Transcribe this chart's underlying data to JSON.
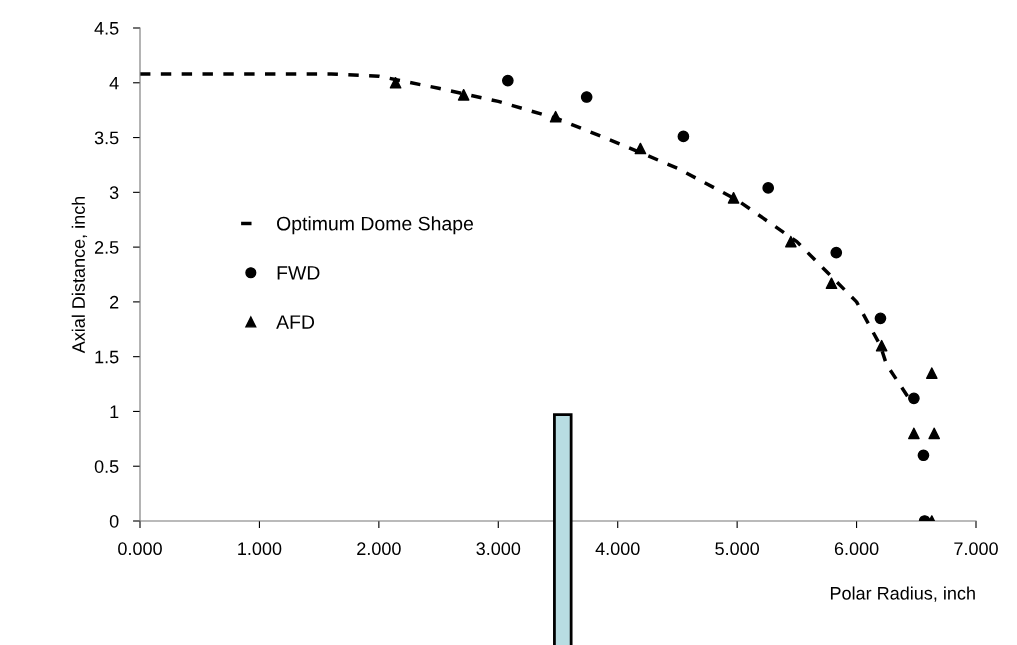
{
  "chart_data": {
    "type": "scatter",
    "xlabel": "Polar Radius, inch",
    "ylabel": "Axial Distance, inch",
    "xlim": [
      0,
      7
    ],
    "ylim": [
      0,
      4.5
    ],
    "xticks": [
      {
        "value": 0,
        "label": "0.000"
      },
      {
        "value": 1,
        "label": "1.000"
      },
      {
        "value": 2,
        "label": "2.000"
      },
      {
        "value": 3,
        "label": "3.000"
      },
      {
        "value": 4,
        "label": "4.000"
      },
      {
        "value": 5,
        "label": "5.000"
      },
      {
        "value": 6,
        "label": "6.000"
      },
      {
        "value": 7,
        "label": "7.000"
      }
    ],
    "yticks": [
      0,
      0.5,
      1,
      1.5,
      2,
      2.5,
      3,
      3.5,
      4,
      4.5
    ],
    "grid": false,
    "legend": "center left",
    "series": [
      {
        "name": "Optimum Dome Shape",
        "type": "line",
        "line_style": "dashed",
        "marker": "none",
        "color": "#000000",
        "x": [
          0,
          1.6,
          2.0,
          2.5,
          3.0,
          3.5,
          4.0,
          4.5,
          5.0,
          5.5,
          5.8,
          6.0,
          6.2,
          6.25,
          6.45
        ],
        "values": [
          4.08,
          4.08,
          4.06,
          3.95,
          3.83,
          3.67,
          3.45,
          3.22,
          2.93,
          2.55,
          2.22,
          2.0,
          1.6,
          1.43,
          1.1
        ]
      },
      {
        "name": "FWD",
        "marker": "circle",
        "color": "#000000",
        "x": [
          3.08,
          3.74,
          4.55,
          5.26,
          5.83,
          6.2,
          6.48,
          6.56,
          6.57
        ],
        "values": [
          4.02,
          3.87,
          3.51,
          3.04,
          2.45,
          1.85,
          1.12,
          0.6,
          0
        ]
      },
      {
        "name": "AFD",
        "marker": "triangle",
        "color": "#000000",
        "x": [
          2.14,
          2.71,
          3.48,
          4.19,
          4.97,
          5.45,
          5.79,
          6.21,
          6.63,
          6.48,
          6.65,
          6.63
        ],
        "values": [
          4.0,
          3.89,
          3.69,
          3.4,
          2.95,
          2.55,
          2.17,
          1.6,
          1.35,
          0.8,
          0.8,
          0
        ]
      }
    ]
  }
}
